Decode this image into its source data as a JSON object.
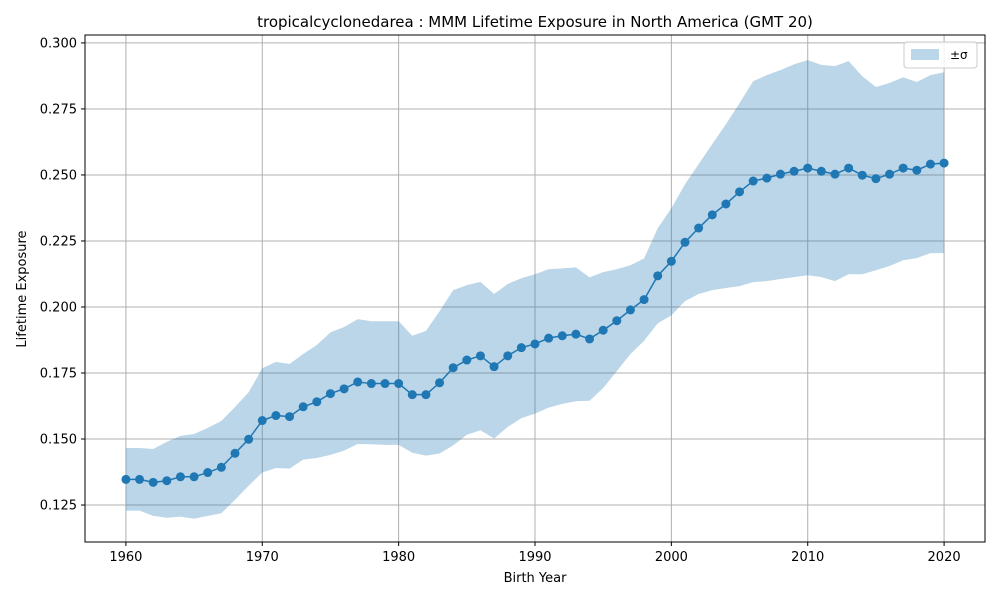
{
  "chart_data": {
    "type": "line",
    "title": "tropicalcyclonedarea : MMM Lifetime Exposure in North America (GMT 20)",
    "xlabel": "Birth Year",
    "ylabel": "Lifetime Exposure",
    "xlim": [
      1957,
      2023
    ],
    "ylim": [
      0.111,
      0.303
    ],
    "xticks": [
      1960,
      1970,
      1980,
      1990,
      2000,
      2010,
      2020
    ],
    "yticks": [
      0.125,
      0.15,
      0.175,
      0.2,
      0.225,
      0.25,
      0.275,
      0.3
    ],
    "ytick_labels": [
      "0.125",
      "0.150",
      "0.175",
      "0.200",
      "0.225",
      "0.250",
      "0.275",
      "0.300"
    ],
    "grid": true,
    "legend_position": "top-right",
    "colors": {
      "line": "#1f77b4",
      "band": "#1f77b4",
      "grid": "#b0b0b0"
    },
    "x": [
      1960,
      1961,
      1962,
      1963,
      1964,
      1965,
      1966,
      1967,
      1968,
      1969,
      1970,
      1971,
      1972,
      1973,
      1974,
      1975,
      1976,
      1977,
      1978,
      1979,
      1980,
      1981,
      1982,
      1983,
      1984,
      1985,
      1986,
      1987,
      1988,
      1989,
      1990,
      1991,
      1992,
      1993,
      1994,
      1995,
      1996,
      1997,
      1998,
      1999,
      2000,
      2001,
      2002,
      2003,
      2004,
      2005,
      2006,
      2007,
      2008,
      2009,
      2010,
      2011,
      2012,
      2013,
      2014,
      2015,
      2016,
      2017,
      2018,
      2019,
      2020
    ],
    "series": [
      {
        "values": [
          0.1347,
          0.1347,
          0.1336,
          0.1342,
          0.1357,
          0.1357,
          0.1373,
          0.1393,
          0.1446,
          0.1499,
          0.157,
          0.1589,
          0.1585,
          0.1622,
          0.1641,
          0.1672,
          0.169,
          0.1716,
          0.171,
          0.171,
          0.171,
          0.1668,
          0.1668,
          0.1713,
          0.177,
          0.1799,
          0.1815,
          0.1774,
          0.1815,
          0.1846,
          0.186,
          0.1882,
          0.1891,
          0.1897,
          0.1879,
          0.1912,
          0.1948,
          0.1989,
          0.2028,
          0.2118,
          0.2173,
          0.2245,
          0.2299,
          0.2349,
          0.239,
          0.2436,
          0.2477,
          0.2488,
          0.2503,
          0.2514,
          0.2526,
          0.2514,
          0.2503,
          0.2526,
          0.2499,
          0.2486,
          0.2503,
          0.2526,
          0.2518,
          0.2541,
          0.2545
        ]
      }
    ],
    "band": {
      "name": "±σ",
      "upper": [
        0.1466,
        0.1466,
        0.1462,
        0.1489,
        0.1512,
        0.1519,
        0.1542,
        0.1568,
        0.1621,
        0.1677,
        0.1768,
        0.1792,
        0.1784,
        0.1822,
        0.1856,
        0.1904,
        0.1924,
        0.1954,
        0.1946,
        0.1946,
        0.1946,
        0.1891,
        0.1909,
        0.1984,
        0.2064,
        0.2083,
        0.2095,
        0.2049,
        0.2087,
        0.2109,
        0.2124,
        0.2143,
        0.2146,
        0.215,
        0.2112,
        0.2132,
        0.2143,
        0.2158,
        0.2184,
        0.2298,
        0.2374,
        0.2465,
        0.2541,
        0.2617,
        0.2692,
        0.2772,
        0.2855,
        0.2878,
        0.2897,
        0.2919,
        0.2935,
        0.2917,
        0.2912,
        0.2931,
        0.2874,
        0.2833,
        0.2848,
        0.287,
        0.2852,
        0.2878,
        0.2889
      ],
      "lower": [
        0.1229,
        0.1229,
        0.1209,
        0.1202,
        0.1206,
        0.1198,
        0.1209,
        0.1219,
        0.127,
        0.1323,
        0.1373,
        0.139,
        0.1388,
        0.1422,
        0.1428,
        0.144,
        0.1456,
        0.1481,
        0.148,
        0.1478,
        0.1478,
        0.1448,
        0.1437,
        0.1445,
        0.1476,
        0.1516,
        0.1533,
        0.1502,
        0.1546,
        0.1579,
        0.1596,
        0.1619,
        0.1633,
        0.1643,
        0.1645,
        0.1693,
        0.1757,
        0.1822,
        0.1872,
        0.1938,
        0.1968,
        0.2022,
        0.2049,
        0.2064,
        0.2072,
        0.2079,
        0.2094,
        0.2098,
        0.2106,
        0.2113,
        0.212,
        0.2113,
        0.2098,
        0.2124,
        0.2124,
        0.2139,
        0.2155,
        0.2177,
        0.2185,
        0.2204,
        0.2204
      ]
    }
  }
}
